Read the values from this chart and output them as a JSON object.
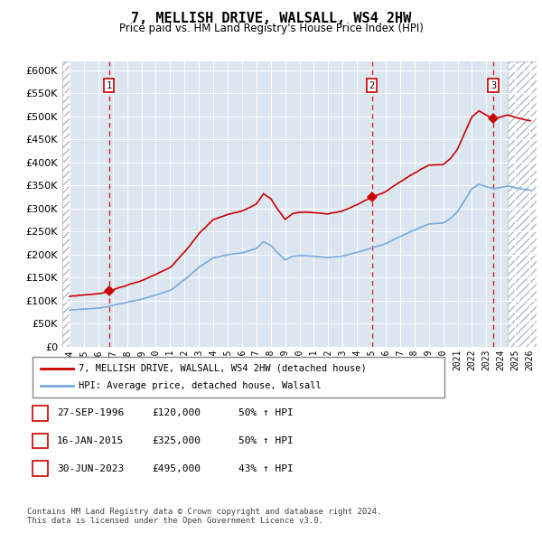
{
  "title": "7, MELLISH DRIVE, WALSALL, WS4 2HW",
  "subtitle": "Price paid vs. HM Land Registry's House Price Index (HPI)",
  "ylim": [
    0,
    620000
  ],
  "yticks": [
    0,
    50000,
    100000,
    150000,
    200000,
    250000,
    300000,
    350000,
    400000,
    450000,
    500000,
    550000,
    600000
  ],
  "ytick_labels": [
    "£0",
    "£50K",
    "£100K",
    "£150K",
    "£200K",
    "£250K",
    "£300K",
    "£350K",
    "£400K",
    "£450K",
    "£500K",
    "£550K",
    "£600K"
  ],
  "hpi_color": "#7aaadd",
  "price_color": "#cc0000",
  "dashed_color": "#cc0000",
  "background_color": "#dce6f1",
  "sale_points": [
    {
      "date_num": 1996.74,
      "price": 120000,
      "label": "1"
    },
    {
      "date_num": 2015.04,
      "price": 325000,
      "label": "2"
    },
    {
      "date_num": 2023.49,
      "price": 495000,
      "label": "3"
    }
  ],
  "legend_house_label": "7, MELLISH DRIVE, WALSALL, WS4 2HW (detached house)",
  "legend_hpi_label": "HPI: Average price, detached house, Walsall",
  "table_rows": [
    {
      "num": "1",
      "date": "27-SEP-1996",
      "price": "£120,000",
      "pct": "50% ↑ HPI"
    },
    {
      "num": "2",
      "date": "16-JAN-2015",
      "price": "£325,000",
      "pct": "50% ↑ HPI"
    },
    {
      "num": "3",
      "date": "30-JUN-2023",
      "price": "£495,000",
      "pct": "43% ↑ HPI"
    }
  ],
  "footer": "Contains HM Land Registry data © Crown copyright and database right 2024.\nThis data is licensed under the Open Government Licence v3.0.",
  "xlim_start": 1993.5,
  "xlim_end": 2026.5,
  "data_start": 1994.0,
  "data_end": 2024.5
}
